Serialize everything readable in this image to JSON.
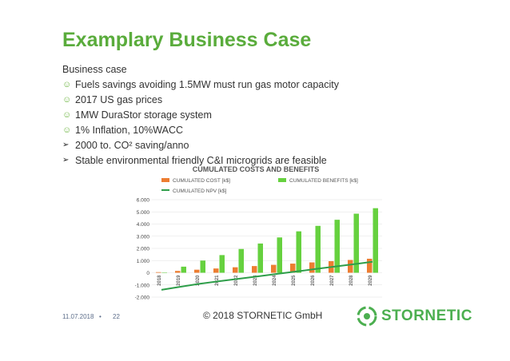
{
  "slide": {
    "title": "Examplary Business Case",
    "subtitle": "Business case",
    "bullets": [
      {
        "icon": "smiley-icon",
        "text": "Fuels savings avoiding 1.5MW must run gas motor capacity"
      },
      {
        "icon": "smiley-icon",
        "text": "2017 US gas prices"
      },
      {
        "icon": "smiley-icon",
        "text": "1MW DuraStor storage system"
      },
      {
        "icon": "smiley-icon",
        "text": "1% Inflation, 10%WACC"
      },
      {
        "icon": "arrow-icon",
        "text": "2000 to. CO² saving/anno"
      },
      {
        "icon": "arrow-icon",
        "text": "Stable environmental friendly C&I microgrids are feasible"
      }
    ]
  },
  "footer": {
    "date": "11.07.2018",
    "separator": "•",
    "page": "22",
    "copyright": "© 2018 STORNETIC GmbH",
    "brand": "STORNETIC"
  },
  "chart_data": {
    "type": "bar",
    "title": "CUMULATED COSTS AND BENEFITS",
    "legend_position": "top",
    "categories": [
      "2018",
      "2019",
      "2020",
      "2021",
      "2022",
      "2023",
      "2024",
      "2025",
      "2026",
      "2027",
      "2028",
      "2029"
    ],
    "series": [
      {
        "name": "CUMULATED COST [k$]",
        "type": "bar",
        "color": "#ed7d31",
        "values": [
          50,
          150,
          250,
          350,
          450,
          550,
          650,
          750,
          850,
          950,
          1050,
          1150
        ]
      },
      {
        "name": "CUMULATED BENEFITS [k$]",
        "type": "bar",
        "color": "#66d13f",
        "values": [
          0,
          500,
          1000,
          1450,
          1950,
          2400,
          2900,
          3400,
          3850,
          4350,
          4850,
          5300
        ]
      },
      {
        "name": "CUMULATED NPV [k$]",
        "type": "line",
        "color": "#2e9e4a",
        "values": [
          -1400,
          -1150,
          -900,
          -700,
          -500,
          -300,
          -100,
          100,
          300,
          500,
          700,
          900
        ]
      }
    ],
    "yticks": [
      "6.000",
      "5.000",
      "4.000",
      "3.000",
      "2.000",
      "1.000",
      "0",
      "-1.000",
      "-2.000"
    ],
    "ylim": [
      -2000,
      6000
    ],
    "grid": "horizontal"
  }
}
